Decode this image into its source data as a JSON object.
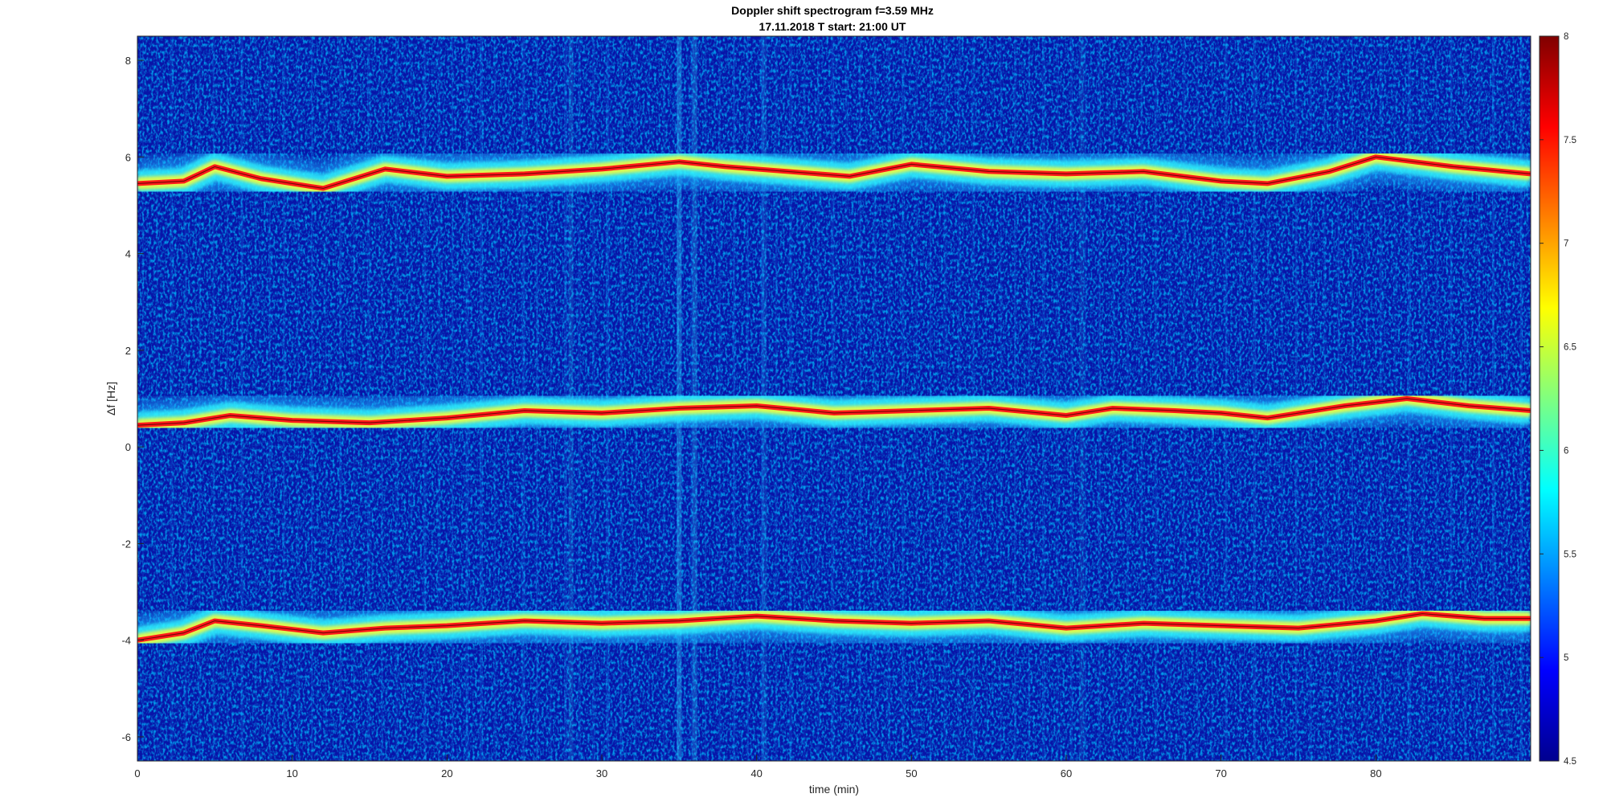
{
  "chart_data": {
    "type": "heatmap",
    "title": "Doppler shift spectrogram f=3.59 MHz",
    "subtitle": "17.11.2018   T start: 21:00 UT",
    "xlabel": "time (min)",
    "ylabel": "Δf [Hz]",
    "xlim": [
      0,
      90
    ],
    "ylim": [
      -6.5,
      8.5
    ],
    "x_ticks": [
      0,
      10,
      20,
      30,
      40,
      50,
      60,
      70,
      80
    ],
    "y_ticks": [
      -6,
      -4,
      -2,
      0,
      2,
      4,
      6,
      8
    ],
    "colorbar": {
      "colormap": "jet",
      "range": [
        4.5,
        8
      ],
      "ticks": [
        4.5,
        5,
        5.5,
        6,
        6.5,
        7,
        7.5,
        8
      ]
    },
    "series": [
      {
        "x": [
          0,
          3,
          5,
          8,
          12,
          16,
          20,
          25,
          30,
          35,
          38,
          42,
          46,
          50,
          55,
          60,
          65,
          70,
          73,
          77,
          80,
          85,
          90
        ],
        "y": [
          5.45,
          5.5,
          5.8,
          5.55,
          5.35,
          5.75,
          5.6,
          5.65,
          5.75,
          5.9,
          5.8,
          5.7,
          5.6,
          5.85,
          5.7,
          5.65,
          5.7,
          5.5,
          5.45,
          5.7,
          6.0,
          5.8,
          5.65
        ]
      },
      {
        "x": [
          0,
          3,
          6,
          10,
          15,
          20,
          25,
          30,
          35,
          40,
          45,
          50,
          55,
          60,
          63,
          67,
          70,
          73,
          78,
          82,
          86,
          90
        ],
        "y": [
          0.45,
          0.5,
          0.65,
          0.55,
          0.5,
          0.6,
          0.75,
          0.7,
          0.8,
          0.85,
          0.7,
          0.75,
          0.8,
          0.65,
          0.8,
          0.75,
          0.7,
          0.6,
          0.85,
          1.0,
          0.85,
          0.75
        ]
      },
      {
        "x": [
          0,
          3,
          5,
          8,
          12,
          16,
          20,
          25,
          30,
          35,
          40,
          45,
          50,
          55,
          60,
          65,
          70,
          75,
          80,
          83,
          87,
          90
        ],
        "y": [
          -4.0,
          -3.85,
          -3.6,
          -3.7,
          -3.85,
          -3.75,
          -3.7,
          -3.6,
          -3.65,
          -3.6,
          -3.5,
          -3.6,
          -3.65,
          -3.6,
          -3.75,
          -3.65,
          -3.7,
          -3.75,
          -3.6,
          -3.45,
          -3.55,
          -3.55
        ]
      }
    ]
  }
}
